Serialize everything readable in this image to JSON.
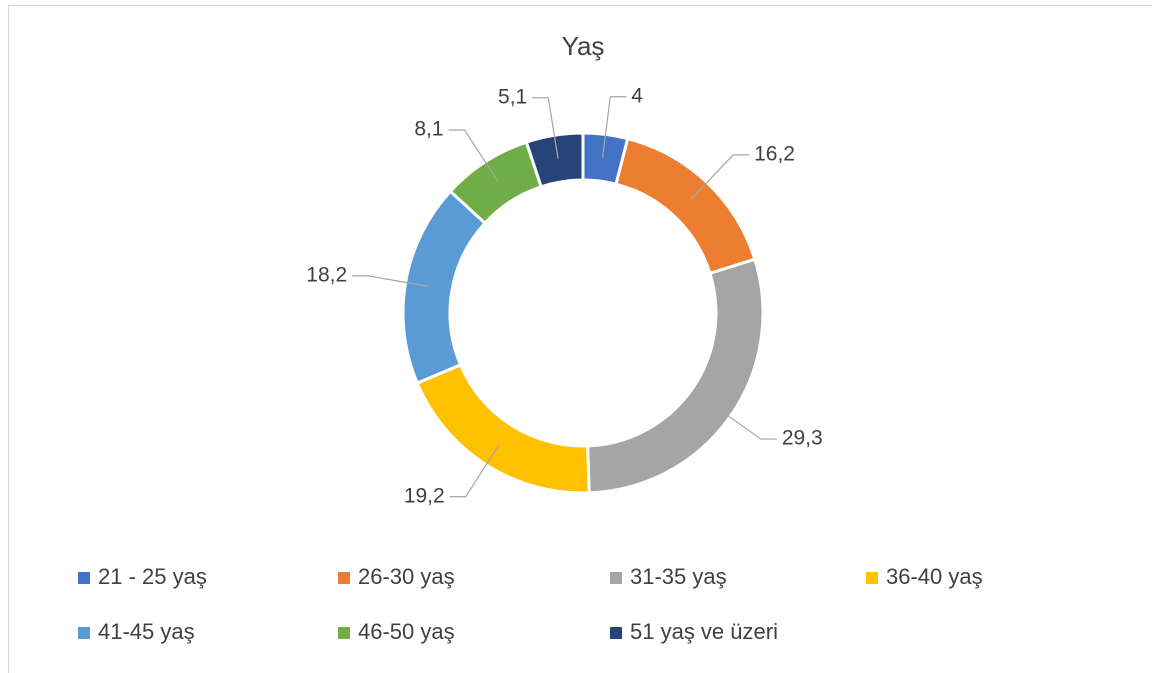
{
  "chart_data": {
    "type": "pie",
    "title": "Yaş",
    "categories": [
      "21 - 25 yaş",
      "26-30 yaş",
      "31-35 yaş",
      "36-40 yaş",
      "41-45 yaş",
      "46-50 yaş",
      "51 yaş ve üzeri"
    ],
    "values": [
      4,
      16.2,
      29.3,
      19.2,
      18.2,
      8.1,
      5.1
    ],
    "value_labels": [
      "4",
      "16,2",
      "29,3",
      "19,2",
      "18,2",
      "8,1",
      "5,1"
    ],
    "colors": [
      "#4472c4",
      "#ed7d31",
      "#a5a5a5",
      "#ffc000",
      "#5b9bd5",
      "#70ad47",
      "#264478"
    ],
    "donut": true,
    "legend": "bottom"
  }
}
